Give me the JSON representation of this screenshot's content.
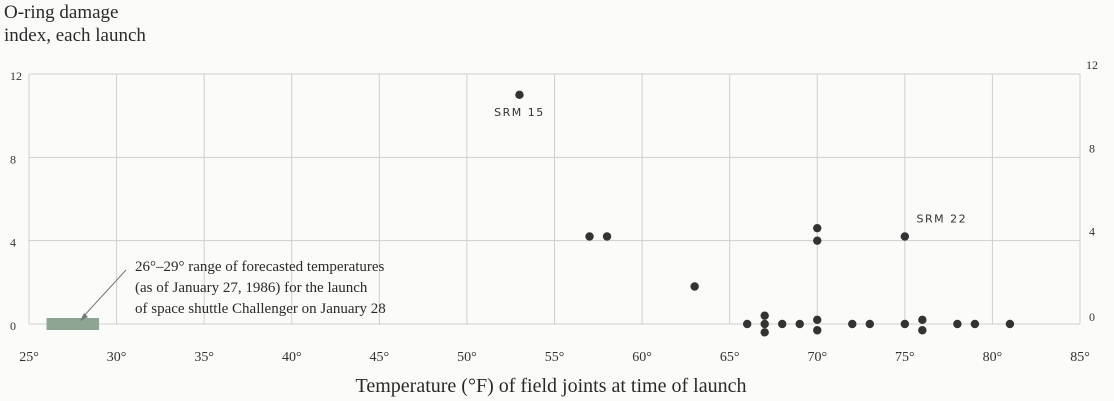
{
  "chart_data": {
    "type": "scatter",
    "title": "",
    "ylabel_lines": [
      "O-ring damage",
      "index, each launch"
    ],
    "xlabel": "Temperature (°F) of field joints at time of launch",
    "xlim": [
      25,
      85
    ],
    "ylim": [
      0,
      12
    ],
    "x_ticks": [
      25,
      30,
      35,
      40,
      45,
      50,
      55,
      60,
      65,
      70,
      75,
      80,
      85
    ],
    "x_tick_labels": [
      "25°",
      "30°",
      "35°",
      "40°",
      "45°",
      "50°",
      "55°",
      "60°",
      "65°",
      "70°",
      "75°",
      "80°",
      "85°"
    ],
    "y_ticks": [
      0,
      4,
      8,
      12
    ],
    "y_tick_labels": [
      "0",
      "4",
      "8",
      "12"
    ],
    "grid": true,
    "point_color": "#333333",
    "forecast_range": {
      "x": [
        26,
        29
      ],
      "color": "#8fa594",
      "annotation_lines": [
        "26°–29° range of forecasted temperatures",
        "(as of January 27, 1986) for the launch",
        "of space shuttle Challenger on January 28"
      ]
    },
    "labeled_points": [
      {
        "label": "SRM 15",
        "x": 53,
        "y": 11
      },
      {
        "label": "SRM 22",
        "x": 75,
        "y": 4.2
      }
    ],
    "points": [
      {
        "x": 53,
        "y": 11
      },
      {
        "x": 57,
        "y": 4.2
      },
      {
        "x": 58,
        "y": 4.2
      },
      {
        "x": 63,
        "y": 1.8
      },
      {
        "x": 66,
        "y": 0
      },
      {
        "x": 67,
        "y": 0
      },
      {
        "x": 67,
        "y": 0.4
      },
      {
        "x": 67,
        "y": -0.4
      },
      {
        "x": 68,
        "y": 0
      },
      {
        "x": 69,
        "y": 0
      },
      {
        "x": 70,
        "y": 0.2
      },
      {
        "x": 70,
        "y": -0.3
      },
      {
        "x": 70,
        "y": 4.0
      },
      {
        "x": 70,
        "y": 4.6
      },
      {
        "x": 72,
        "y": 0
      },
      {
        "x": 73,
        "y": 0
      },
      {
        "x": 75,
        "y": 0
      },
      {
        "x": 75,
        "y": 4.2
      },
      {
        "x": 76,
        "y": 0.2
      },
      {
        "x": 76,
        "y": -0.3
      },
      {
        "x": 78,
        "y": 0
      },
      {
        "x": 79,
        "y": 0
      },
      {
        "x": 81,
        "y": 0
      }
    ]
  }
}
